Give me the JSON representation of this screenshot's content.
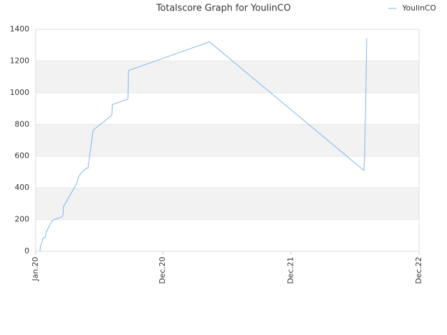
{
  "chart_data": {
    "type": "line",
    "title": "Totalscore Graph for YoulinCO",
    "x": [
      0.38,
      0.45,
      0.57,
      0.64,
      0.7,
      0.77,
      0.89,
      0.96,
      1.21,
      1.53,
      1.98,
      2.36,
      2.49,
      2.55,
      3.57,
      3.76,
      3.95,
      4.14,
      4.65,
      4.78,
      5.23,
      5.29,
      6.95,
      7.01,
      8.42,
      8.48,
      15.87,
      29.96,
      30.03,
      30.09,
      30.15,
      30.22
    ],
    "series": [
      {
        "name": "YoulinCO",
        "color": "#7cb5ec",
        "values": [
          0,
          35,
          53,
          79,
          84,
          88,
          88,
          119,
          154,
          194,
          207,
          216,
          229,
          282,
          405,
          432,
          471,
          493,
          524,
          524,
          757,
          766,
          858,
          925,
          960,
          1140,
          1321,
          510,
          607,
          823,
          1034,
          1343
        ]
      }
    ],
    "xlim": [
      0,
      35
    ],
    "xticks": [
      {
        "value": 0,
        "label": "Jan.20"
      },
      {
        "value": 11.6,
        "label": "Dec.20"
      },
      {
        "value": 23.3,
        "label": "Dec.21"
      },
      {
        "value": 35,
        "label": "Dec.22"
      }
    ],
    "ylim": [
      0,
      1400
    ],
    "yticks": [
      0,
      200,
      400,
      600,
      800,
      1000,
      1200,
      1400
    ],
    "grid": true,
    "legend": "top-right"
  }
}
